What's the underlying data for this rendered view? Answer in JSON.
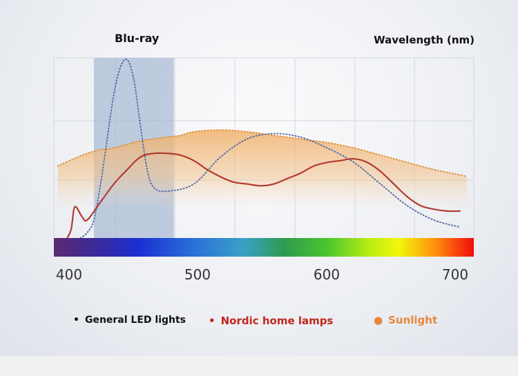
{
  "chart_data": {
    "type": "line",
    "title": "Blu-ray",
    "xlabel": "Wavelength (nm)",
    "xlim": [
      395,
      710
    ],
    "ylim": [
      0,
      1
    ],
    "x_ticks": [
      "400",
      "500",
      "600",
      "700"
    ],
    "highlight_band": {
      "label": "Blu-ray",
      "x0": 425,
      "x1": 485
    },
    "series": [
      {
        "name": "General LED lights",
        "style": "dotted",
        "color": "#5a6ea8",
        "x": [
          415,
          420,
          425,
          430,
          435,
          440,
          445,
          450,
          455,
          460,
          465,
          470,
          480,
          500,
          520,
          540,
          560,
          580,
          600,
          620,
          640,
          660,
          680,
          700
        ],
        "y": [
          0.0,
          0.03,
          0.1,
          0.3,
          0.55,
          0.8,
          0.95,
          0.99,
          0.88,
          0.62,
          0.38,
          0.28,
          0.26,
          0.3,
          0.45,
          0.55,
          0.58,
          0.56,
          0.5,
          0.42,
          0.3,
          0.18,
          0.1,
          0.06
        ]
      },
      {
        "name": "Nordic home lamps",
        "style": "solid",
        "color": "#b23a30",
        "x": [
          405,
          408,
          410,
          412,
          416,
          420,
          430,
          440,
          450,
          460,
          470,
          480,
          490,
          500,
          510,
          520,
          530,
          540,
          550,
          560,
          570,
          580,
          590,
          600,
          610,
          620,
          630,
          640,
          650,
          660,
          670,
          680,
          690,
          700
        ],
        "y": [
          0.0,
          0.05,
          0.16,
          0.17,
          0.12,
          0.1,
          0.2,
          0.3,
          0.38,
          0.45,
          0.47,
          0.47,
          0.46,
          0.43,
          0.38,
          0.34,
          0.31,
          0.3,
          0.29,
          0.3,
          0.33,
          0.36,
          0.4,
          0.42,
          0.43,
          0.44,
          0.42,
          0.37,
          0.3,
          0.23,
          0.18,
          0.16,
          0.15,
          0.15
        ]
      },
      {
        "name": "Sunlight",
        "style": "dotted-filled",
        "color": "#e0933a",
        "x": [
          398,
          410,
          420,
          430,
          440,
          450,
          460,
          470,
          480,
          490,
          500,
          520,
          540,
          560,
          580,
          600,
          620,
          640,
          660,
          680,
          700,
          705
        ],
        "y": [
          0.4,
          0.44,
          0.47,
          0.49,
          0.5,
          0.52,
          0.54,
          0.55,
          0.56,
          0.57,
          0.59,
          0.6,
          0.59,
          0.57,
          0.55,
          0.53,
          0.5,
          0.46,
          0.42,
          0.38,
          0.35,
          0.34
        ]
      }
    ]
  },
  "legend": [
    {
      "label": "General LED lights",
      "color": "#111111"
    },
    {
      "label": "Nordic home lamps",
      "color": "#c0271c"
    },
    {
      "label": "Sunlight",
      "color": "#e8873a"
    }
  ]
}
